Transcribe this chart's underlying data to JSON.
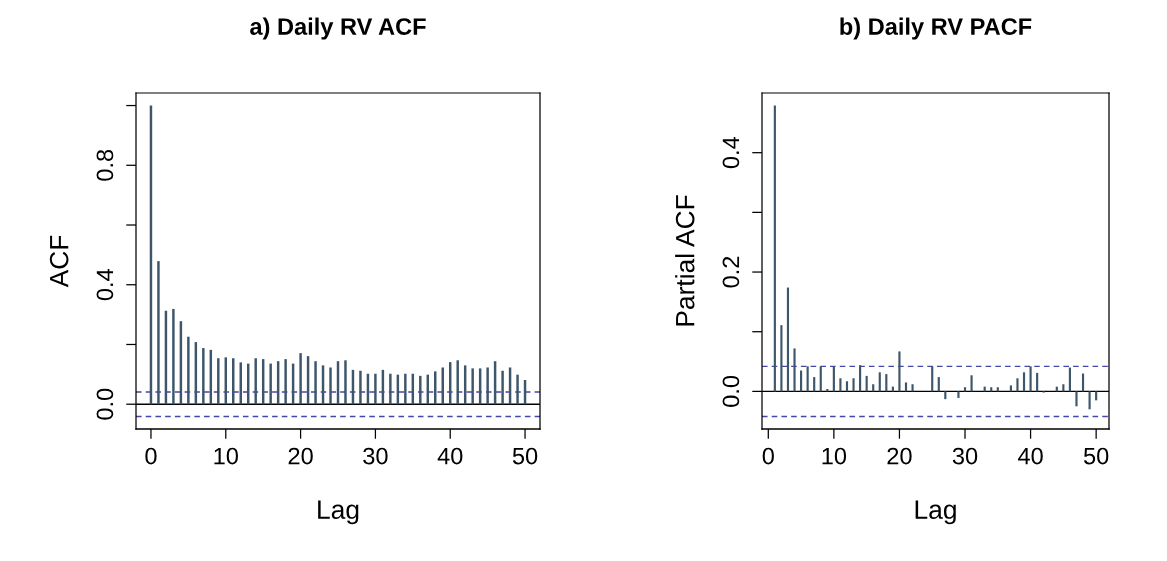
{
  "chart_data": [
    {
      "type": "bar",
      "title": "a) Daily RV ACF",
      "xlabel": "Lag",
      "ylabel": "ACF",
      "color": "#3e566b",
      "x": [
        0,
        1,
        2,
        3,
        4,
        5,
        6,
        7,
        8,
        9,
        10,
        11,
        12,
        13,
        14,
        15,
        16,
        17,
        18,
        19,
        20,
        21,
        22,
        23,
        24,
        25,
        26,
        27,
        28,
        29,
        30,
        31,
        32,
        33,
        34,
        35,
        36,
        37,
        38,
        39,
        40,
        41,
        42,
        43,
        44,
        45,
        46,
        47,
        48,
        49,
        50
      ],
      "values": [
        1.0,
        0.479,
        0.313,
        0.319,
        0.278,
        0.226,
        0.208,
        0.188,
        0.182,
        0.154,
        0.157,
        0.154,
        0.14,
        0.136,
        0.154,
        0.151,
        0.136,
        0.144,
        0.151,
        0.136,
        0.171,
        0.161,
        0.144,
        0.13,
        0.123,
        0.144,
        0.147,
        0.115,
        0.112,
        0.102,
        0.102,
        0.115,
        0.102,
        0.099,
        0.102,
        0.102,
        0.095,
        0.099,
        0.11,
        0.123,
        0.141,
        0.147,
        0.13,
        0.12,
        0.12,
        0.123,
        0.144,
        0.112,
        0.123,
        0.099,
        0.081
      ],
      "xlim": [
        -2,
        52
      ],
      "xticks": [
        0,
        10,
        20,
        30,
        40,
        50
      ],
      "ylim": [
        -0.083,
        1.042
      ],
      "yticks": [
        {
          "value": 0,
          "label": "0.0"
        },
        {
          "value": 0.2,
          "label": null
        },
        {
          "value": 0.4,
          "label": "0.4"
        },
        {
          "value": 0.6,
          "label": null
        },
        {
          "value": 0.8,
          "label": "0.8"
        },
        {
          "value": 1.0,
          "label": null
        }
      ],
      "ref_lines": [
        {
          "axis": "y",
          "value": 0,
          "color": "#000000",
          "line_style": "solid"
        },
        {
          "axis": "y",
          "value": 0.041,
          "color": "#4646a8",
          "line_style": "dashed"
        },
        {
          "axis": "y",
          "value": -0.041,
          "color": "#4646a8",
          "line_style": "dashed"
        }
      ]
    },
    {
      "type": "bar",
      "title": "b) Daily RV PACF",
      "xlabel": "Lag",
      "ylabel": "Partial ACF",
      "color": "#3e566b",
      "x": [
        1,
        2,
        3,
        4,
        5,
        6,
        7,
        8,
        9,
        10,
        11,
        12,
        13,
        14,
        15,
        16,
        17,
        18,
        19,
        20,
        21,
        22,
        23,
        24,
        25,
        26,
        27,
        28,
        29,
        30,
        31,
        32,
        33,
        34,
        35,
        36,
        37,
        38,
        39,
        40,
        41,
        42,
        43,
        44,
        45,
        46,
        47,
        48,
        49,
        50
      ],
      "values": [
        0.479,
        0.111,
        0.174,
        0.072,
        0.035,
        0.042,
        0.024,
        0.042,
        0.004,
        0.041,
        0.022,
        0.017,
        0.022,
        0.044,
        0.026,
        0.012,
        0.032,
        0.029,
        0.008,
        0.067,
        0.015,
        0.012,
        null,
        null,
        0.042,
        0.024,
        -0.013,
        null,
        -0.011,
        0.007,
        0.027,
        null,
        0.008,
        0.007,
        0.007,
        null,
        0.01,
        0.022,
        0.032,
        0.042,
        0.031,
        -0.002,
        null,
        0.008,
        0.012,
        0.04,
        -0.025,
        0.03,
        -0.03,
        -0.015
      ],
      "xlim": [
        -0.96,
        51.96
      ],
      "xticks": [
        0,
        10,
        20,
        30,
        40,
        50
      ],
      "ylim": [
        -0.063,
        0.5
      ],
      "yticks": [
        {
          "value": 0,
          "label": "0.0"
        },
        {
          "value": 0.1,
          "label": null
        },
        {
          "value": 0.2,
          "label": "0.2"
        },
        {
          "value": 0.3,
          "label": null
        },
        {
          "value": 0.4,
          "label": "0.4"
        }
      ],
      "ref_lines": [
        {
          "axis": "y",
          "value": 0,
          "color": "#000000",
          "line_style": "solid"
        },
        {
          "axis": "y",
          "value": 0.042,
          "color": "#4646a8",
          "line_style": "dashed"
        },
        {
          "axis": "y",
          "value": -0.042,
          "color": "#4646a8",
          "line_style": "dashed"
        }
      ]
    }
  ]
}
